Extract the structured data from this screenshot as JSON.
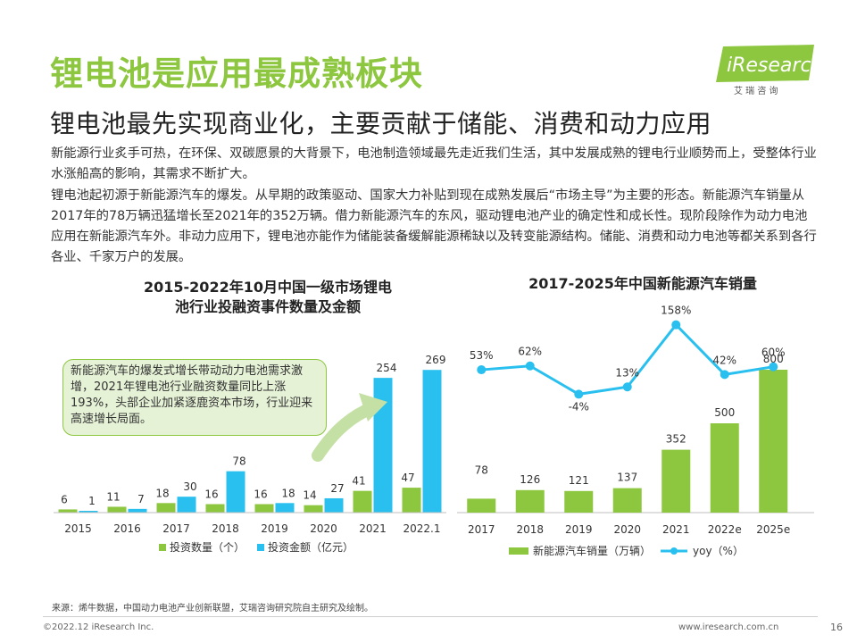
{
  "header": {
    "title": "锂电池是应用最成熟板块",
    "subtitle": "锂电池最先实现商业化，主要贡献于储能、消费和动力应用",
    "logo_text": "iResearch",
    "logo_cn": "艾 瑞 咨 询"
  },
  "body": {
    "p1": "新能源行业炙手可热，在环保、双碳愿景的大背景下，电池制造领域最先走近我们生活，其中发展成熟的锂电行业顺势而上，受整体行业水涨船高的影响，其需求不断扩大。",
    "p2": "锂电池起初源于新能源汽车的爆发。从早期的政策驱动、国家大力补贴到现在成熟发展后“市场主导”为主要的形态。新能源汽车销量从2017年的78万辆迅猛增长至2021年的352万辆。借力新能源汽车的东风，驱动锂电池产业的确定性和成长性。现阶段除作为动力电池应用在新能源汽车外。非动力应用下，锂电池亦能作为储能装备缓解能源稀缺以及转变能源结构。储能、消费和动力电池等都关系到各行各业、千家万户的发展。"
  },
  "callout": "新能源汽车的爆发式增长带动动力电池需求激增，2021年锂电池行业融资数量同比上涨193%，头部企业加紧逐鹿资本市场，行业迎来高速增长局面。",
  "chart_data": [
    {
      "type": "bar",
      "title_line1": "2015-2022年10月中国一级市场锂电",
      "title_line2": "池行业投融资事件数量及金额",
      "categories": [
        "2015",
        "2016",
        "2017",
        "2018",
        "2019",
        "2020",
        "2021",
        "2022.1"
      ],
      "series": [
        {
          "name": "投资数量（个）",
          "values": [
            6,
            11,
            18,
            16,
            16,
            14,
            41,
            47
          ],
          "color": "#8dc63f"
        },
        {
          "name": "投资金额（亿元）",
          "values": [
            1,
            7,
            30,
            78,
            18,
            27,
            254,
            269
          ],
          "color": "#29c0ef"
        }
      ]
    },
    {
      "type": "bar+line",
      "title": "2017-2025年中国新能源汽车销量",
      "categories": [
        "2017",
        "2018",
        "2019",
        "2020",
        "2021",
        "2022e",
        "2025e"
      ],
      "bars": {
        "name": "新能源汽车销量（万辆）",
        "values": [
          78,
          126,
          121,
          137,
          352,
          500,
          800
        ],
        "color": "#8dc63f"
      },
      "line": {
        "name": "yoy（%）",
        "values": [
          53,
          62,
          -4,
          13,
          158,
          42,
          60
        ],
        "labels": [
          "53%",
          "62%",
          "-4%",
          "13%",
          "158%",
          "42%",
          "60%"
        ],
        "color": "#29c0ef"
      }
    }
  ],
  "footer": {
    "source": "来源：烯牛数据，中国动力电池产业创新联盟，艾瑞咨询研究院自主研究及绘制。",
    "copyright": "©2022.12  iResearch Inc.",
    "url": "www.iresearch.com.cn",
    "page": "16"
  }
}
